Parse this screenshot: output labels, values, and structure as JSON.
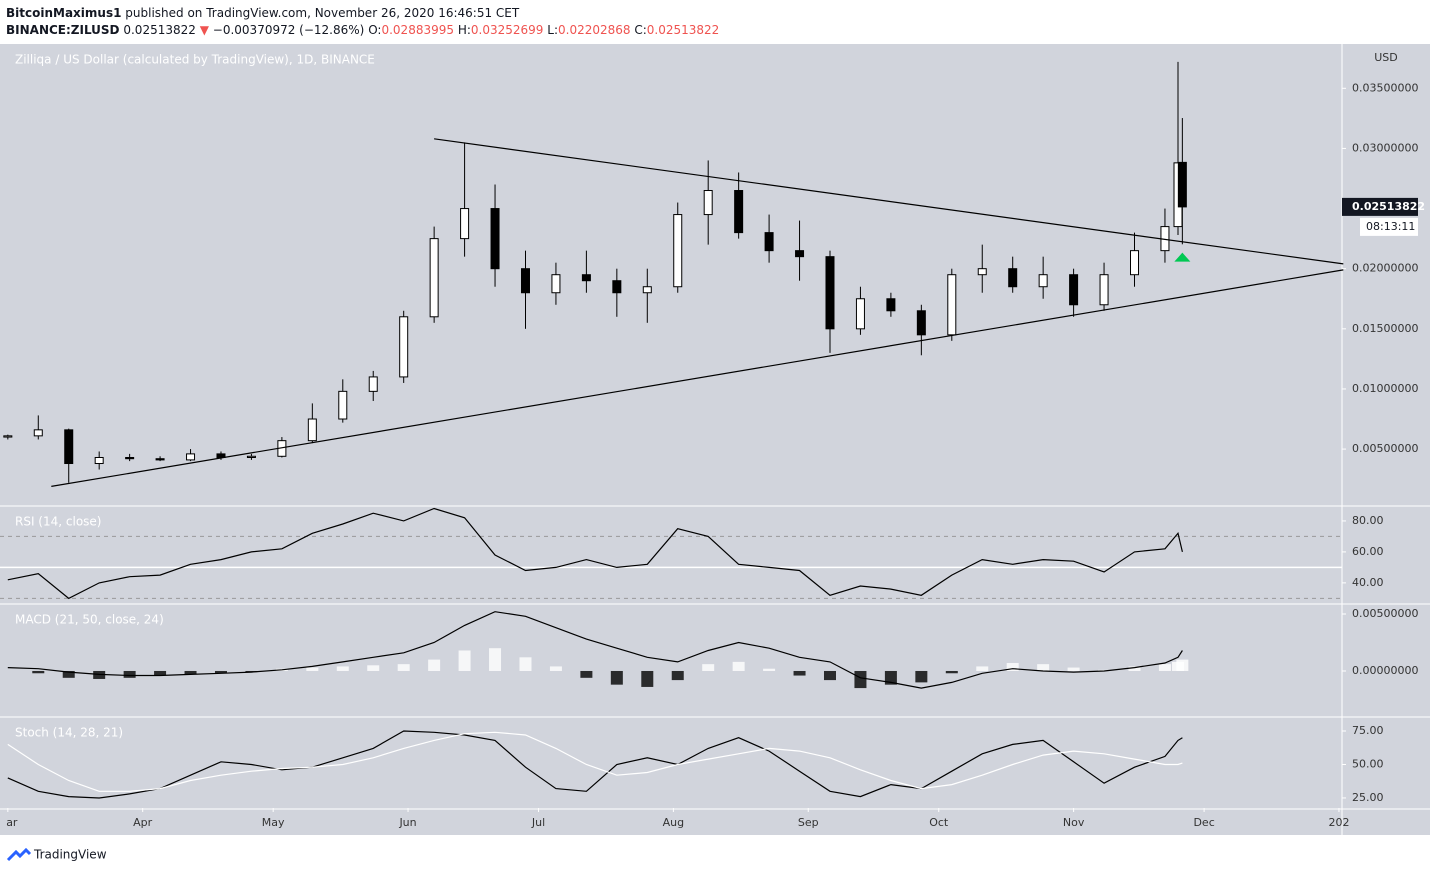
{
  "header": {
    "author": "BitcoinMaximus1",
    "published": "published on TradingView.com, November 26, 2020 16:46:51 CET",
    "symbol": "BINANCE:ZILUSD",
    "arrow": "▼",
    "change": "−0.00370972 (−12.86%)",
    "o_label": "O:",
    "h_label": "H:",
    "l_label": "L:",
    "c_label": "C:",
    "brand": "TradingView"
  },
  "chart_data": {
    "type": "candlestick",
    "title": "Zilliqa / US Dollar (calculated by TradingView), 1D, BINANCE",
    "y_unit": "USD",
    "x": [
      0,
      7,
      14,
      21,
      28,
      35,
      42,
      49,
      56,
      63,
      70,
      77,
      84,
      91,
      98,
      105,
      112,
      119,
      126,
      133,
      140,
      147,
      154,
      161,
      168,
      175,
      182,
      189,
      196,
      203,
      210,
      217,
      224,
      231,
      238,
      245,
      252,
      259,
      266,
      269,
      270
    ],
    "open": [
      0.006,
      0.0061,
      0.0066,
      0.0038,
      0.0043,
      0.0042,
      0.0041,
      0.0046,
      0.0043,
      0.0044,
      0.0057,
      0.0075,
      0.0098,
      0.011,
      0.016,
      0.0225,
      0.025,
      0.02,
      0.018,
      0.0195,
      0.019,
      0.018,
      0.0185,
      0.0245,
      0.0265,
      0.023,
      0.0215,
      0.021,
      0.015,
      0.0175,
      0.0165,
      0.0145,
      0.0195,
      0.02,
      0.0185,
      0.0195,
      0.017,
      0.0195,
      0.0215,
      0.0235,
      0.02883995
    ],
    "high": [
      0.0062,
      0.0078,
      0.0067,
      0.0048,
      0.0046,
      0.0044,
      0.005,
      0.0048,
      0.0046,
      0.006,
      0.0088,
      0.0108,
      0.0115,
      0.0165,
      0.0235,
      0.0305,
      0.027,
      0.0215,
      0.0205,
      0.0215,
      0.02,
      0.02,
      0.0255,
      0.029,
      0.028,
      0.0245,
      0.024,
      0.0215,
      0.0185,
      0.018,
      0.017,
      0.02,
      0.022,
      0.021,
      0.021,
      0.02,
      0.0205,
      0.023,
      0.025,
      0.0372,
      0.03252699
    ],
    "low": [
      0.0058,
      0.0058,
      0.0022,
      0.0033,
      0.004,
      0.004,
      0.004,
      0.0041,
      0.0041,
      0.0043,
      0.0055,
      0.0072,
      0.009,
      0.0105,
      0.0155,
      0.021,
      0.0185,
      0.015,
      0.017,
      0.018,
      0.016,
      0.0155,
      0.018,
      0.022,
      0.0225,
      0.0205,
      0.019,
      0.013,
      0.0145,
      0.016,
      0.0128,
      0.014,
      0.018,
      0.018,
      0.0175,
      0.016,
      0.0165,
      0.0185,
      0.0205,
      0.0228,
      0.02202868
    ],
    "close": [
      0.0061,
      0.0066,
      0.0038,
      0.0043,
      0.0042,
      0.0041,
      0.0046,
      0.0043,
      0.0044,
      0.0057,
      0.0075,
      0.0098,
      0.011,
      0.016,
      0.0225,
      0.025,
      0.02,
      0.018,
      0.0195,
      0.019,
      0.018,
      0.0185,
      0.0245,
      0.0265,
      0.023,
      0.0215,
      0.021,
      0.015,
      0.0175,
      0.0165,
      0.0145,
      0.0195,
      0.02,
      0.0185,
      0.0195,
      0.017,
      0.0195,
      0.0215,
      0.0235,
      0.0288,
      0.02513822
    ],
    "up_color": "#ffffff",
    "down_color": "#000000",
    "xlim": [
      -1.8,
      306.7
    ],
    "xticks": [
      {
        "value": 0,
        "label": "ar"
      },
      {
        "value": 31,
        "label": "Apr"
      },
      {
        "value": 61,
        "label": "May"
      },
      {
        "value": 92,
        "label": "Jun"
      },
      {
        "value": 122,
        "label": "Jul"
      },
      {
        "value": 153,
        "label": "Aug"
      },
      {
        "value": 184,
        "label": "Sep"
      },
      {
        "value": 214,
        "label": "Oct"
      },
      {
        "value": 245,
        "label": "Nov"
      },
      {
        "value": 275,
        "label": "Dec"
      },
      {
        "value": 306,
        "label": "202"
      }
    ],
    "ylim": [
      0.00035,
      0.0386
    ],
    "yticks": [
      {
        "value": 0.005,
        "label": "0.00500000"
      },
      {
        "value": 0.01,
        "label": "0.01000000"
      },
      {
        "value": 0.015,
        "label": "0.01500000"
      },
      {
        "value": 0.02,
        "label": "0.02000000"
      },
      {
        "value": 0.025,
        "label": "0.02500000"
      },
      {
        "value": 0.03,
        "label": "0.03000000"
      },
      {
        "value": 0.035,
        "label": "0.03500000"
      }
    ],
    "countdown": "08:13:11",
    "trendlines": [
      {
        "x": [
          98,
          307
        ],
        "y": [
          0.0308,
          0.0204
        ]
      },
      {
        "x": [
          10,
          307
        ],
        "y": [
          0.0019,
          0.0199
        ]
      }
    ],
    "markers": [
      {
        "x": 270,
        "y": 0.021,
        "color": "#00c853"
      }
    ],
    "indicators": [
      {
        "type": "line",
        "title": "RSI (14, close)",
        "ylim": [
          27,
          89
        ],
        "yticks": [
          {
            "value": 40,
            "label": "40.00"
          },
          {
            "value": 60,
            "label": "60.00"
          },
          {
            "value": 80,
            "label": "80.00"
          }
        ],
        "levels": [
          {
            "value": 70,
            "dashed": true
          },
          {
            "value": 50,
            "dashed": false
          },
          {
            "value": 30,
            "dashed": true
          }
        ],
        "series": [
          {
            "color": "#000000",
            "values": [
              42,
              46,
              30,
              40,
              44,
              45,
              52,
              55,
              60,
              62,
              72,
              78,
              85,
              80,
              88,
              82,
              58,
              48,
              50,
              55,
              50,
              52,
              75,
              70,
              52,
              50,
              48,
              32,
              38,
              36,
              32,
              45,
              55,
              52,
              55,
              54,
              47,
              60,
              62,
              72,
              60
            ]
          }
        ]
      },
      {
        "type": "line",
        "title": "MACD (21, 50, close, 24)",
        "ylim": [
          -0.00395,
          0.00579
        ],
        "yticks": [
          {
            "value": 0,
            "label": "0.00000000"
          },
          {
            "value": 0.005,
            "label": "0.00500000"
          }
        ],
        "histogram": {
          "up_color": "#ffffff",
          "down_color": "#000000",
          "values": [
            0,
            -0.0002,
            -0.0006,
            -0.0007,
            -0.0006,
            -0.0004,
            -0.0003,
            -0.0002,
            -0.0001,
            0.0002,
            0.0003,
            0.0004,
            0.0005,
            0.0006,
            0.001,
            0.0018,
            0.002,
            0.0012,
            0.0004,
            -0.0006,
            -0.0012,
            -0.0014,
            -0.0008,
            0.0006,
            0.0008,
            0.0002,
            -0.0004,
            -0.0008,
            -0.0015,
            -0.0012,
            -0.001,
            -0.0002,
            0.0004,
            0.0007,
            0.0006,
            0.0003,
            0.0001,
            0.0004,
            0.0006,
            0.0008,
            0.001
          ]
        },
        "series": [
          {
            "color": "#000000",
            "values": [
              0.0003,
              0.0002,
              -0.0001,
              -0.0003,
              -0.0004,
              -0.0004,
              -0.0003,
              -0.0002,
              -0.0001,
              0.0001,
              0.0004,
              0.0008,
              0.0012,
              0.0016,
              0.0025,
              0.004,
              0.0052,
              0.0048,
              0.0038,
              0.0028,
              0.002,
              0.0012,
              0.0008,
              0.0018,
              0.0025,
              0.002,
              0.0012,
              0.0008,
              -0.0006,
              -0.001,
              -0.0015,
              -0.001,
              -0.0002,
              0.0002,
              0.0,
              -0.0001,
              0.0,
              0.0003,
              0.0007,
              0.0012,
              0.0018
            ]
          }
        ]
      },
      {
        "type": "line",
        "title": "Stoch (14, 28, 21)",
        "ylim": [
          17.5,
          84.7
        ],
        "yticks": [
          {
            "value": 25,
            "label": "25.00"
          },
          {
            "value": 50,
            "label": "50.00"
          },
          {
            "value": 75,
            "label": "75.00"
          }
        ],
        "series": [
          {
            "color": "#000000",
            "values": [
              40,
              30,
              26,
              25,
              28,
              32,
              42,
              52,
              50,
              46,
              48,
              55,
              62,
              75,
              74,
              72,
              68,
              48,
              32,
              30,
              50,
              55,
              50,
              62,
              70,
              60,
              45,
              30,
              26,
              35,
              32,
              45,
              58,
              65,
              68,
              52,
              36,
              48,
              56,
              68,
              70
            ]
          },
          {
            "color": "#ffffff",
            "values": [
              65,
              50,
              38,
              30,
              30,
              32,
              38,
              42,
              45,
              47,
              48,
              50,
              55,
              62,
              68,
              73,
              74,
              72,
              62,
              50,
              42,
              44,
              50,
              54,
              58,
              62,
              60,
              55,
              46,
              38,
              32,
              35,
              42,
              50,
              57,
              60,
              58,
              54,
              50,
              50,
              51
            ]
          }
        ]
      }
    ]
  }
}
